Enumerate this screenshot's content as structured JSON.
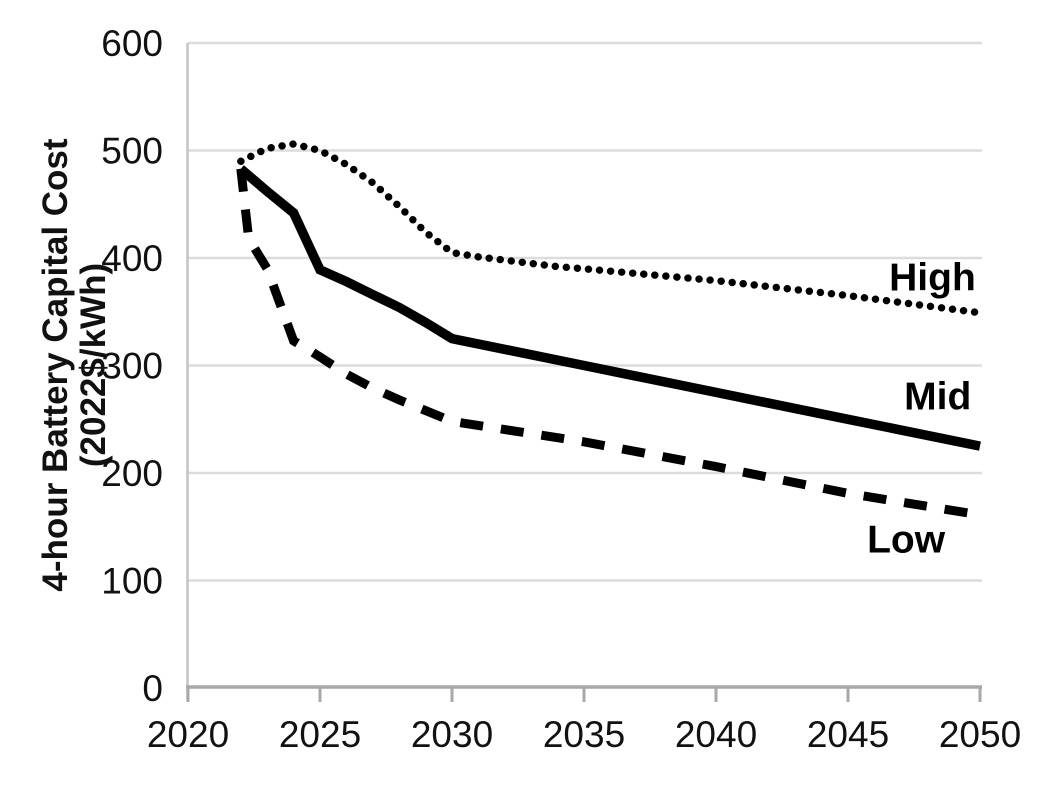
{
  "chart_data": {
    "type": "line",
    "title": "",
    "xlabel": "",
    "ylabel_line1": "4-hour Battery Capital Cost",
    "ylabel_line2": "(2022$/kWh)",
    "xlim": [
      2020,
      2050
    ],
    "ylim": [
      0,
      600
    ],
    "xticks": [
      "2020",
      "2025",
      "2030",
      "2035",
      "2040",
      "2045",
      "2050"
    ],
    "yticks": [
      "0",
      "100",
      "200",
      "300",
      "400",
      "500",
      "600"
    ],
    "grid": "horizontal-only",
    "legend": "inline-labels-right",
    "colors": {
      "line": "#000000",
      "grid": "#dcdcdc",
      "y_axis": "#c4c4c4",
      "x_axis": "#a8a8a8",
      "text": "#111111",
      "background": "#ffffff"
    },
    "series": [
      {
        "name": "High",
        "style": "dotted",
        "label": {
          "text": "High",
          "x": 2048.2,
          "y": 383
        },
        "points": [
          [
            2022,
            490
          ],
          [
            2023,
            502
          ],
          [
            2024,
            506
          ],
          [
            2025,
            500
          ],
          [
            2026,
            487
          ],
          [
            2027,
            470
          ],
          [
            2028,
            448
          ],
          [
            2029,
            424
          ],
          [
            2030,
            405
          ],
          [
            2031,
            401
          ],
          [
            2032,
            398
          ],
          [
            2033,
            395
          ],
          [
            2034,
            392
          ],
          [
            2035,
            390
          ],
          [
            2040,
            379
          ],
          [
            2045,
            365
          ],
          [
            2050,
            349
          ]
        ]
      },
      {
        "name": "Mid",
        "style": "solid",
        "label": {
          "text": "Mid",
          "x": 2048.4,
          "y": 272
        },
        "points": [
          [
            2022,
            483
          ],
          [
            2023,
            462
          ],
          [
            2024,
            442
          ],
          [
            2025,
            389
          ],
          [
            2026,
            378
          ],
          [
            2027,
            366
          ],
          [
            2028,
            354
          ],
          [
            2029,
            340
          ],
          [
            2030,
            325
          ],
          [
            2035,
            300
          ],
          [
            2040,
            275
          ],
          [
            2045,
            250
          ],
          [
            2050,
            225
          ]
        ]
      },
      {
        "name": "Low",
        "style": "dashed",
        "label": {
          "text": "Low",
          "x": 2047.2,
          "y": 139
        },
        "points": [
          [
            2022,
            483
          ],
          [
            2022.3,
            418
          ],
          [
            2023,
            390
          ],
          [
            2024,
            323
          ],
          [
            2025,
            308
          ],
          [
            2026,
            292
          ],
          [
            2027,
            279
          ],
          [
            2028,
            268
          ],
          [
            2029,
            258
          ],
          [
            2030,
            248
          ],
          [
            2035,
            229
          ],
          [
            2040,
            206
          ],
          [
            2045,
            181
          ],
          [
            2050,
            161
          ]
        ]
      }
    ]
  }
}
